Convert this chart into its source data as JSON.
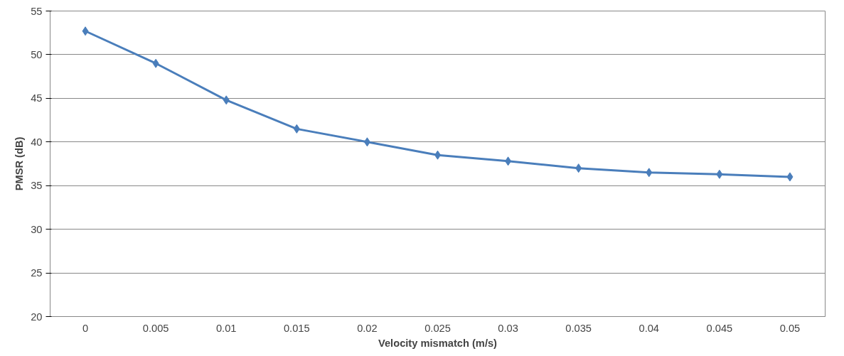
{
  "chart_data": {
    "type": "line",
    "xlabel": "Velocity mismatch (m/s)",
    "ylabel": "PMSR (dB)",
    "categories": [
      "0",
      "0.005",
      "0.01",
      "0.015",
      "0.02",
      "0.025",
      "0.03",
      "0.035",
      "0.04",
      "0.045",
      "0.05"
    ],
    "series": [
      {
        "color": "#4a7ebb",
        "values": [
          52.7,
          49.0,
          44.8,
          41.5,
          40.0,
          38.5,
          37.8,
          37.0,
          36.5,
          36.3,
          36.0
        ]
      }
    ],
    "ylim": [
      20,
      55
    ],
    "yticks": [
      20,
      25,
      30,
      35,
      40,
      45,
      50,
      55
    ],
    "grid": "y",
    "marker": "diamond",
    "line_style": "solid"
  }
}
